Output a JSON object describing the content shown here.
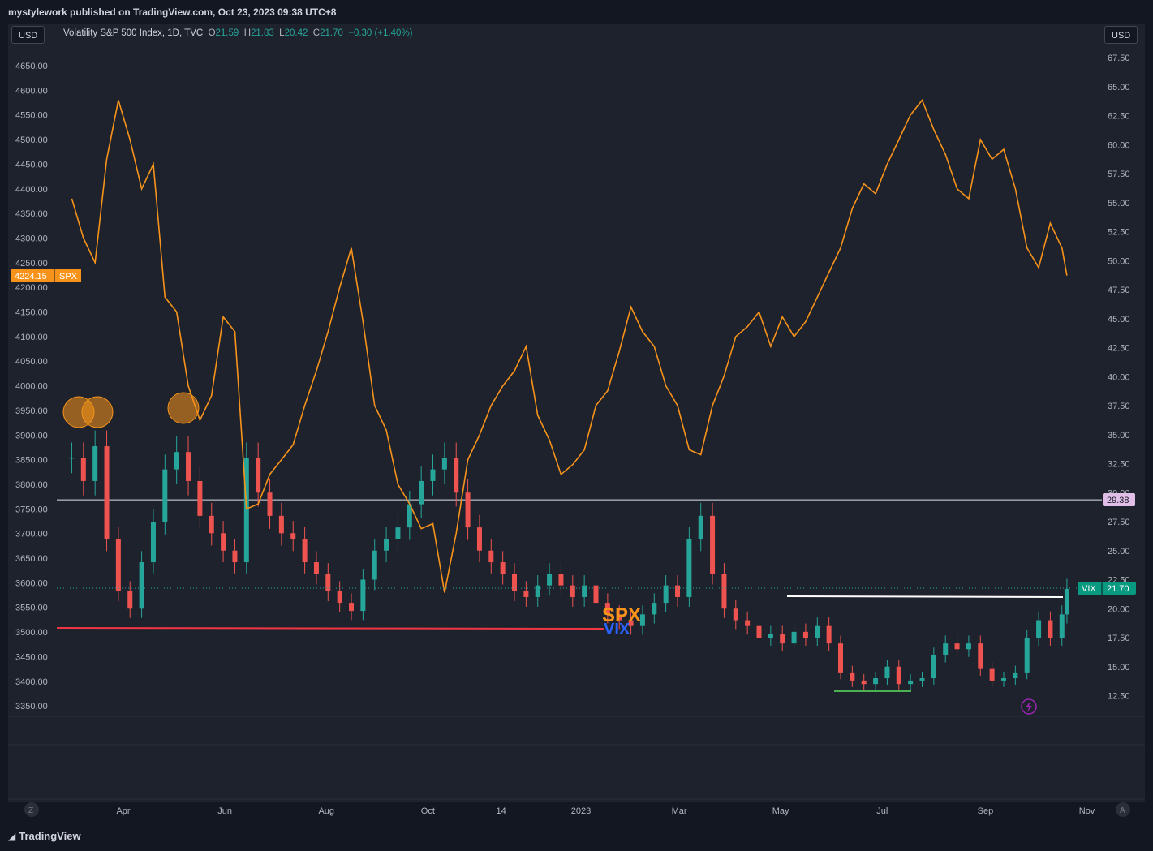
{
  "header": {
    "published": "mystylework published on TradingView.com, Oct 23, 2023 09:38 UTC+8"
  },
  "buttons": {
    "left_currency": "USD",
    "right_currency": "USD",
    "zoom_left": "Z",
    "zoom_right": "A"
  },
  "legend": {
    "symbol": "Volatility S&P 500 Index, 1D, TVC",
    "o_label": "O",
    "o_value": "21.59",
    "h_label": "H",
    "h_value": "21.83",
    "l_label": "L",
    "l_value": "20.42",
    "c_label": "C",
    "c_value": "21.70",
    "change": "+0.30 (+1.40%)"
  },
  "footer": {
    "brand": "TradingView",
    "brand_icon": "tradingview-logo-icon"
  },
  "colors": {
    "spx_line": "#f7931a",
    "up": "#26a69a",
    "down": "#ef5350",
    "bg": "#1e222d"
  },
  "chart_data": [
    {
      "type": "line",
      "series": [
        {
          "name": "SPX",
          "x": [
            "2022-03-01",
            "2022-03-08",
            "2022-03-15",
            "2022-03-22",
            "2022-03-29",
            "2022-04-05",
            "2022-04-12",
            "2022-04-19",
            "2022-04-26",
            "2022-05-03",
            "2022-05-10",
            "2022-05-17",
            "2022-05-24",
            "2022-05-31",
            "2022-06-07",
            "2022-06-14",
            "2022-06-21",
            "2022-06-28",
            "2022-07-05",
            "2022-07-12",
            "2022-07-19",
            "2022-07-26",
            "2022-08-02",
            "2022-08-09",
            "2022-08-16",
            "2022-08-23",
            "2022-08-30",
            "2022-09-06",
            "2022-09-13",
            "2022-09-20",
            "2022-09-27",
            "2022-10-04",
            "2022-10-11",
            "2022-10-18",
            "2022-10-25",
            "2022-11-01",
            "2022-11-08",
            "2022-11-15",
            "2022-11-22",
            "2022-11-29",
            "2022-12-06",
            "2022-12-13",
            "2022-12-20",
            "2022-12-27",
            "2023-01-03",
            "2023-01-10",
            "2023-01-17",
            "2023-01-24",
            "2023-01-31",
            "2023-02-07",
            "2023-02-14",
            "2023-02-21",
            "2023-02-28",
            "2023-03-07",
            "2023-03-14",
            "2023-03-21",
            "2023-03-28",
            "2023-04-04",
            "2023-04-11",
            "2023-04-18",
            "2023-04-25",
            "2023-05-02",
            "2023-05-09",
            "2023-05-16",
            "2023-05-23",
            "2023-05-30",
            "2023-06-06",
            "2023-06-13",
            "2023-06-20",
            "2023-06-27",
            "2023-07-04",
            "2023-07-11",
            "2023-07-18",
            "2023-07-25",
            "2023-08-01",
            "2023-08-08",
            "2023-08-15",
            "2023-08-22",
            "2023-08-29",
            "2023-09-05",
            "2023-09-12",
            "2023-09-19",
            "2023-09-26",
            "2023-10-03",
            "2023-10-10",
            "2023-10-17",
            "2023-10-20"
          ],
          "values": [
            4380,
            4300,
            4250,
            4460,
            4580,
            4500,
            4400,
            4450,
            4180,
            4150,
            4000,
            3930,
            3980,
            4140,
            4110,
            3750,
            3760,
            3820,
            3850,
            3880,
            3960,
            4030,
            4110,
            4200,
            4280,
            4130,
            3960,
            3910,
            3800,
            3760,
            3710,
            3720,
            3580,
            3700,
            3850,
            3900,
            3960,
            4000,
            4030,
            4080,
            3940,
            3890,
            3820,
            3840,
            3870,
            3960,
            3990,
            4070,
            4160,
            4110,
            4080,
            4000,
            3960,
            3870,
            3860,
            3960,
            4020,
            4100,
            4120,
            4150,
            4080,
            4140,
            4100,
            4130,
            4180,
            4230,
            4280,
            4360,
            4410,
            4390,
            4450,
            4500,
            4550,
            4580,
            4520,
            4470,
            4400,
            4380,
            4500,
            4460,
            4480,
            4400,
            4280,
            4240,
            4330,
            4280,
            4224
          ]
        }
      ],
      "ylim": [
        3350,
        4650
      ],
      "price_label": "4224.15",
      "symbol_label": "SPX"
    },
    {
      "type": "candlestick",
      "series": [
        {
          "name": "VIX",
          "x": [
            "2022-03-01",
            "2022-03-08",
            "2022-03-15",
            "2022-03-22",
            "2022-03-29",
            "2022-04-05",
            "2022-04-12",
            "2022-04-19",
            "2022-04-26",
            "2022-05-03",
            "2022-05-10",
            "2022-05-17",
            "2022-05-24",
            "2022-05-31",
            "2022-06-07",
            "2022-06-14",
            "2022-06-21",
            "2022-06-28",
            "2022-07-05",
            "2022-07-12",
            "2022-07-19",
            "2022-07-26",
            "2022-08-02",
            "2022-08-09",
            "2022-08-16",
            "2022-08-23",
            "2022-08-30",
            "2022-09-06",
            "2022-09-13",
            "2022-09-20",
            "2022-09-27",
            "2022-10-04",
            "2022-10-11",
            "2022-10-18",
            "2022-10-25",
            "2022-11-01",
            "2022-11-08",
            "2022-11-15",
            "2022-11-22",
            "2022-11-29",
            "2022-12-06",
            "2022-12-13",
            "2022-12-20",
            "2022-12-27",
            "2023-01-03",
            "2023-01-10",
            "2023-01-17",
            "2023-01-24",
            "2023-01-31",
            "2023-02-07",
            "2023-02-14",
            "2023-02-21",
            "2023-02-28",
            "2023-03-07",
            "2023-03-14",
            "2023-03-21",
            "2023-03-28",
            "2023-04-04",
            "2023-04-11",
            "2023-04-18",
            "2023-04-25",
            "2023-05-02",
            "2023-05-09",
            "2023-05-16",
            "2023-05-23",
            "2023-05-30",
            "2023-06-06",
            "2023-06-13",
            "2023-06-20",
            "2023-06-27",
            "2023-07-04",
            "2023-07-11",
            "2023-07-18",
            "2023-07-25",
            "2023-08-01",
            "2023-08-08",
            "2023-08-15",
            "2023-08-22",
            "2023-08-29",
            "2023-09-05",
            "2023-09-12",
            "2023-09-19",
            "2023-09-26",
            "2023-10-03",
            "2023-10-10",
            "2023-10-17",
            "2023-10-20"
          ],
          "close": [
            33.0,
            31.0,
            34.0,
            26.0,
            21.5,
            20.0,
            24.0,
            27.5,
            32.0,
            33.5,
            31.0,
            28.0,
            26.5,
            25.0,
            24.0,
            33.0,
            30.0,
            28.0,
            26.5,
            26.0,
            24.0,
            23.0,
            21.5,
            20.5,
            19.8,
            22.5,
            25.0,
            26.0,
            27.0,
            29.0,
            31.0,
            32.0,
            33.0,
            30.0,
            27.0,
            25.0,
            24.0,
            23.0,
            21.5,
            21.0,
            22.0,
            23.0,
            22.0,
            21.0,
            22.0,
            20.5,
            19.5,
            19.0,
            18.5,
            19.5,
            20.5,
            22.0,
            21.0,
            26.0,
            28.0,
            23.0,
            20.0,
            19.0,
            18.5,
            17.5,
            17.8,
            17.0,
            18.0,
            17.5,
            18.5,
            17.0,
            14.5,
            13.8,
            13.5,
            14.0,
            15.0,
            13.5,
            13.8,
            14.0,
            16.0,
            17.0,
            16.5,
            17.0,
            14.8,
            13.8,
            14.0,
            14.5,
            17.5,
            19.0,
            17.5,
            19.5,
            21.7
          ]
        }
      ],
      "ylim": [
        12.5,
        67.5
      ],
      "price_label": "21.70",
      "symbol_label": "VIX",
      "reference_level": "29.38"
    }
  ],
  "axes": {
    "left_ticks": [
      "4650.00",
      "4600.00",
      "4550.00",
      "4500.00",
      "4450.00",
      "4400.00",
      "4350.00",
      "4300.00",
      "4250.00",
      "4200.00",
      "4150.00",
      "4100.00",
      "4050.00",
      "4000.00",
      "3950.00",
      "3900.00",
      "3850.00",
      "3800.00",
      "3750.00",
      "3700.00",
      "3650.00",
      "3600.00",
      "3550.00",
      "3500.00",
      "3450.00",
      "3400.00",
      "3350.00"
    ],
    "right_ticks": [
      "67.50",
      "65.00",
      "62.50",
      "60.00",
      "57.50",
      "55.00",
      "52.50",
      "50.00",
      "47.50",
      "45.00",
      "42.50",
      "40.00",
      "37.50",
      "35.00",
      "32.50",
      "30.00",
      "27.50",
      "25.00",
      "22.50",
      "20.00",
      "17.50",
      "15.00",
      "12.50"
    ],
    "x_ticks": [
      "Apr",
      "Jun",
      "Aug",
      "Oct",
      "14",
      "2023",
      "Mar",
      "May",
      "Jul",
      "Sep",
      "Nov"
    ]
  },
  "annotations": {
    "spx_text": "SPX",
    "vix_text": "VIX",
    "alert_icon": "lightning-alert-icon"
  }
}
